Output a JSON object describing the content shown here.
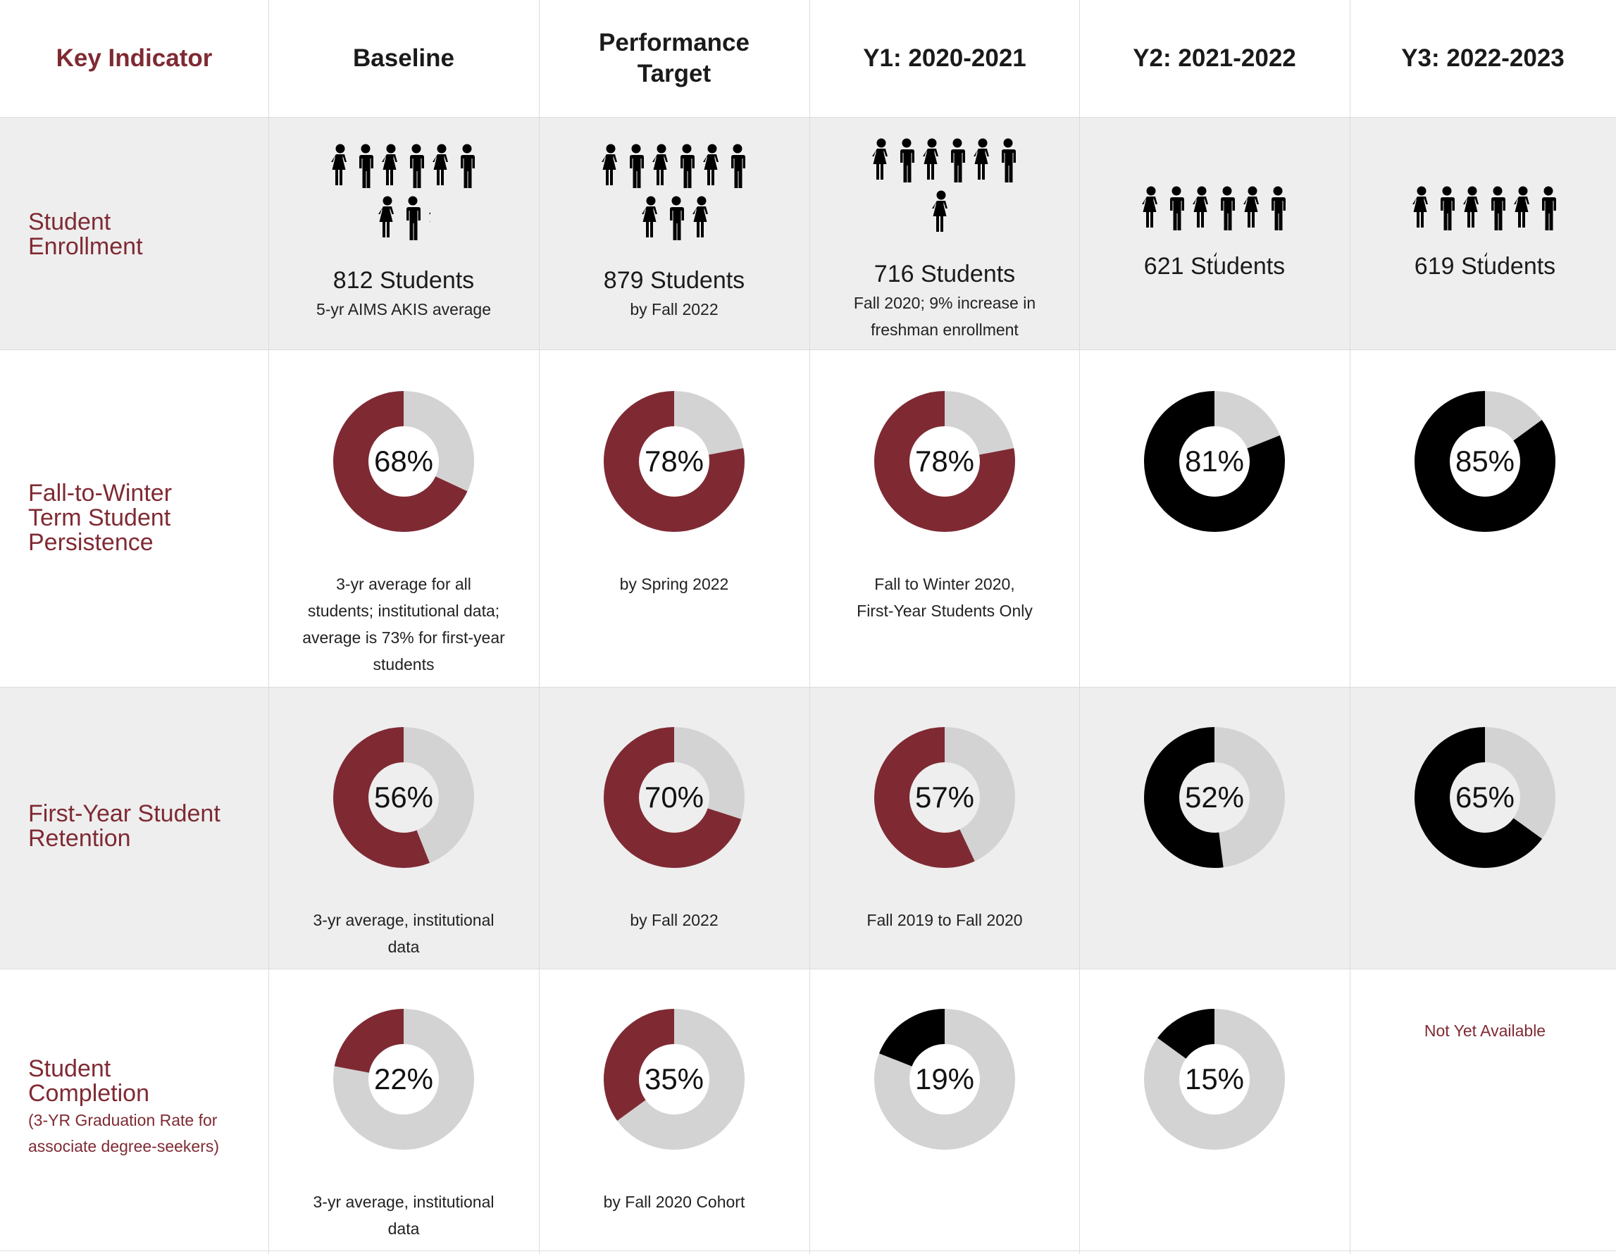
{
  "colors": {
    "maroon": "#7f2a33",
    "black": "#000000",
    "grey": "#d3d3d3",
    "band": "#eeeeee"
  },
  "header": {
    "key": "Key Indicator",
    "columns": [
      "Baseline",
      "Performance\nTarget",
      "Y1: 2020-2021",
      "Y2: 2021-2022",
      "Y3: 2022-2023"
    ]
  },
  "rows": [
    {
      "label": "Student\nEnrollment"
    },
    {
      "label": "Fall-to-Winter\nTerm Student\nPersistence"
    },
    {
      "label": "First-Year Student\nRetention"
    },
    {
      "label": "Student\nCompletion",
      "sublabel": "(3-YR Graduation Rate for\nassociate degree-seekers)"
    }
  ],
  "enrollment": [
    {
      "count": "812 Students",
      "note": "5-yr AIMS AKIS average"
    },
    {
      "count": "879 Students",
      "note": "by Fall 2022"
    },
    {
      "count": "716 Students",
      "note": "Fall 2020; 9% increase in\nfreshman enrollment"
    },
    {
      "count": "621 Students",
      "note": ""
    },
    {
      "count": "619 Students",
      "note": ""
    }
  ],
  "persistence_notes": [
    "3-yr average for all\nstudents; institutional data;\naverage is 73% for first-year\nstudents",
    "by Spring 2022",
    "Fall to Winter 2020,",
    "",
    ""
  ],
  "persistence_note_emphasis": "First-Year Students Only",
  "retention_notes": [
    "3-yr average, institutional\ndata",
    "by Fall 2022",
    "Fall 2019 to Fall 2020",
    "",
    ""
  ],
  "completion_notes": [
    "3-yr average, institutional\ndata",
    "by Fall 2020 Cohort",
    "",
    "",
    ""
  ],
  "completion_na": "Not Yet Available",
  "chart_data": {
    "type": "table",
    "title": "",
    "columns": [
      "Baseline",
      "Performance Target",
      "Y1: 2020-2021",
      "Y2: 2021-2022",
      "Y3: 2022-2023"
    ],
    "enrollment_students": [
      812,
      879,
      716,
      621,
      619
    ],
    "donut_rows": [
      {
        "name": "Fall-to-Winter Term Student Persistence",
        "values": [
          68,
          78,
          78,
          81,
          85
        ],
        "labels": [
          "68%",
          "78%",
          "78%",
          "81%",
          "85%"
        ],
        "colors": [
          "maroon",
          "maroon",
          "maroon",
          "black",
          "black"
        ]
      },
      {
        "name": "First-Year Student Retention",
        "values": [
          56,
          70,
          57,
          52,
          65
        ],
        "labels": [
          "56%",
          "70%",
          "57%",
          "52%",
          "65%"
        ],
        "colors": [
          "maroon",
          "maroon",
          "maroon",
          "black",
          "black"
        ]
      },
      {
        "name": "Student Completion",
        "values": [
          22,
          35,
          19,
          15,
          null
        ],
        "labels": [
          "22%",
          "35%",
          "19%",
          "15%",
          ""
        ],
        "colors": [
          "maroon",
          "maroon",
          "black",
          "black",
          "black"
        ]
      }
    ]
  }
}
